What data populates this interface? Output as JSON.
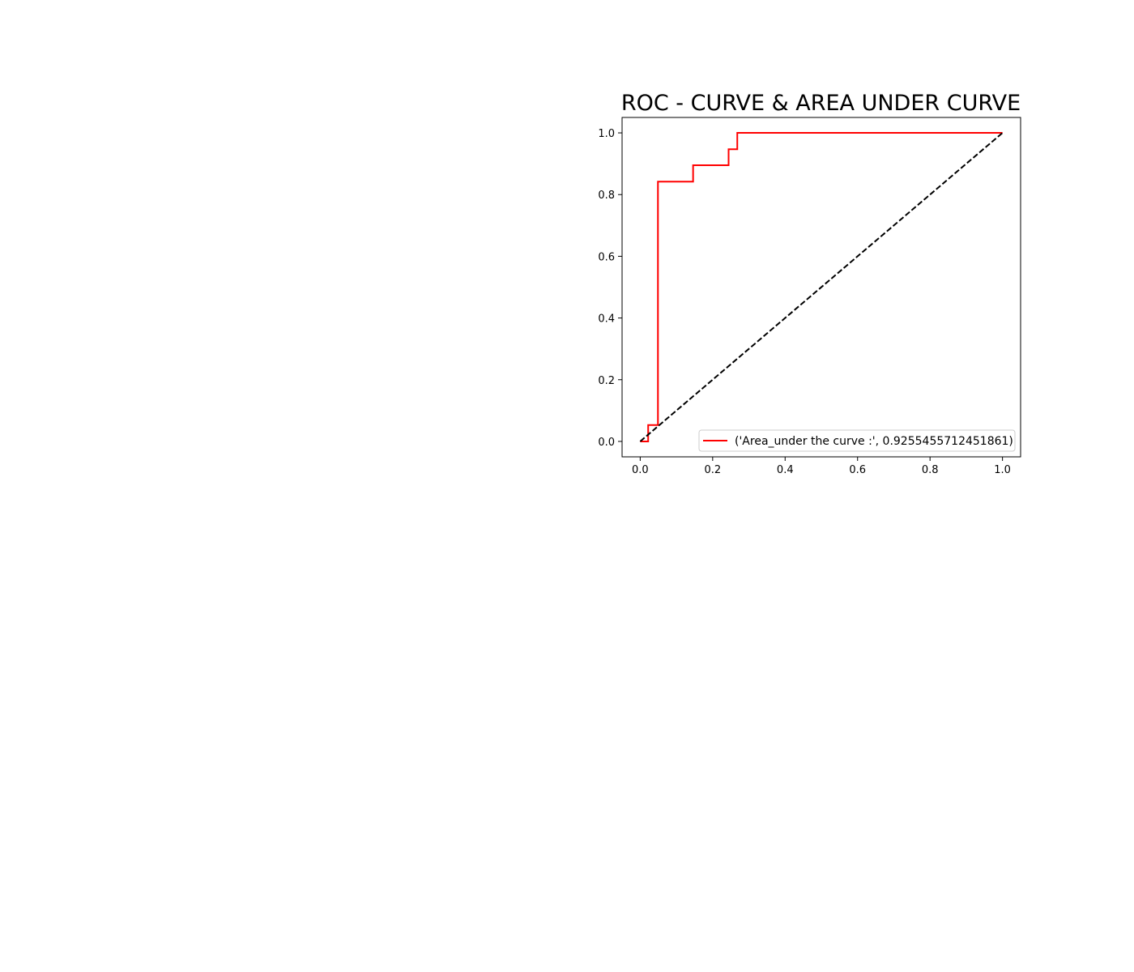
{
  "chart_data": {
    "type": "line",
    "title": "ROC - CURVE & AREA UNDER CURVE",
    "xlabel": "",
    "ylabel": "",
    "xlim": [
      -0.05,
      1.05
    ],
    "ylim": [
      -0.05,
      1.05
    ],
    "xticks": [
      0.0,
      0.2,
      0.4,
      0.6,
      0.8,
      1.0
    ],
    "yticks": [
      0.0,
      0.2,
      0.4,
      0.6,
      0.8,
      1.0
    ],
    "xtick_labels": [
      "0.0",
      "0.2",
      "0.4",
      "0.6",
      "0.8",
      "1.0"
    ],
    "ytick_labels": [
      "0.0",
      "0.2",
      "0.4",
      "0.6",
      "0.8",
      "1.0"
    ],
    "grid": false,
    "legend_position": "lower-right",
    "series": [
      {
        "name": "('Area_under the curve :', 0.9255455712451861)",
        "color": "#ff0000",
        "style": "solid",
        "x": [
          0.0,
          0.022,
          0.022,
          0.049,
          0.049,
          0.146,
          0.146,
          0.244,
          0.244,
          0.268,
          0.268,
          1.0
        ],
        "y": [
          0.0,
          0.0,
          0.053,
          0.053,
          0.842,
          0.842,
          0.895,
          0.895,
          0.947,
          0.947,
          1.0,
          1.0
        ]
      },
      {
        "color": "#000000",
        "style": "dashed",
        "x": [
          0.0,
          1.0
        ],
        "y": [
          0.0,
          1.0
        ]
      }
    ]
  }
}
